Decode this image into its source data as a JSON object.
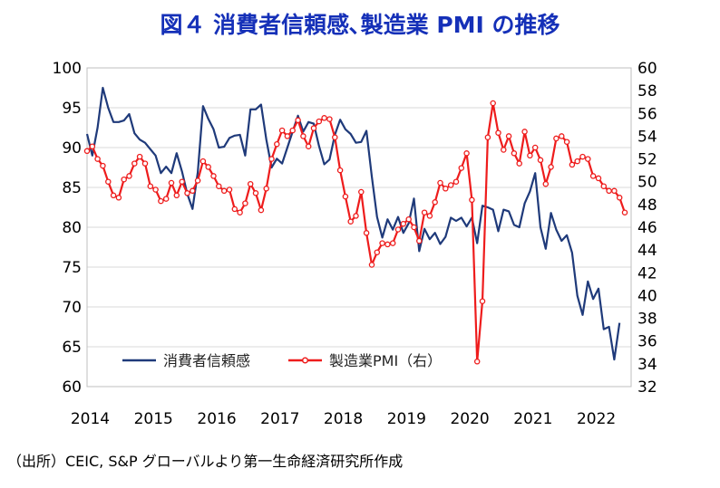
{
  "title": "図４ 消費者信頼感､製造業 PMI の推移",
  "source": "（出所）CEIC, S&P グローバルより第一生命経済研究所作成",
  "colors": {
    "consumer": "#1f3a7a",
    "pmi": "#ee1c1c",
    "grid": "#d9d9d9"
  },
  "chart_data": {
    "type": "line",
    "title": "図４ 消費者信頼感､製造業 PMI の推移",
    "x_start": 2014.0,
    "x_step_months": 1,
    "x_ticks": [
      "2014",
      "2015",
      "2016",
      "2017",
      "2018",
      "2019",
      "2020",
      "2021",
      "2022"
    ],
    "ylim_left": [
      60,
      100
    ],
    "yticks_left": [
      100,
      95,
      90,
      85,
      80,
      75,
      70,
      65,
      60
    ],
    "ylim_right": [
      32,
      60
    ],
    "yticks_right": [
      60,
      58,
      56,
      54,
      52,
      50,
      48,
      46,
      44,
      42,
      40,
      38,
      36,
      34,
      32
    ],
    "grid": "horizontal",
    "legend_position": "bottom-left",
    "series": [
      {
        "name": "消費者信頼感",
        "axis": "left",
        "marker": "none",
        "values": [
          91.7,
          89.0,
          92.5,
          97.5,
          95.0,
          93.2,
          93.2,
          93.4,
          94.2,
          91.8,
          91.0,
          90.6,
          89.8,
          89.0,
          86.8,
          87.6,
          86.8,
          89.3,
          87.0,
          84.2,
          82.3,
          86.9,
          95.2,
          93.6,
          92.3,
          90.0,
          90.1,
          91.2,
          91.5,
          91.6,
          89.0,
          94.8,
          94.8,
          95.4,
          91.0,
          87.5,
          88.6,
          88.0,
          90.0,
          92.0,
          94.0,
          92.0,
          93.2,
          93.0,
          90.2,
          87.9,
          88.5,
          91.6,
          93.5,
          92.3,
          91.7,
          90.6,
          90.7,
          92.1,
          86.4,
          81.3,
          78.7,
          81.0,
          79.7,
          81.3,
          79.3,
          80.5,
          83.6,
          77.0,
          79.8,
          78.5,
          79.3,
          77.9,
          78.8,
          81.2,
          80.8,
          81.2,
          80.1,
          81.2,
          78.0,
          82.7,
          82.5,
          82.2,
          79.5,
          82.2,
          82.0,
          80.3,
          80.0,
          83.0,
          84.5,
          86.8,
          80.0,
          77.3,
          81.8,
          79.7,
          78.3,
          79.0,
          76.8,
          71.4,
          69.0,
          73.2,
          71.0,
          72.3,
          67.2,
          67.5,
          63.4,
          68.0
        ]
      },
      {
        "name": "製造業PMI（右）",
        "axis": "right",
        "marker": "circle",
        "values": [
          52.7,
          53.1,
          52.0,
          51.4,
          50.0,
          48.8,
          48.6,
          50.2,
          50.5,
          51.6,
          52.2,
          51.6,
          49.6,
          49.3,
          48.3,
          48.5,
          49.9,
          48.8,
          50.0,
          49.0,
          49.2,
          50.1,
          51.8,
          51.3,
          50.5,
          49.6,
          49.2,
          49.3,
          47.6,
          47.3,
          48.1,
          49.8,
          49.0,
          47.5,
          49.4,
          52.0,
          53.3,
          54.5,
          54.0,
          54.5,
          55.4,
          54.0,
          53.1,
          54.7,
          55.3,
          55.6,
          55.5,
          53.9,
          51.0,
          48.7,
          46.5,
          47.0,
          49.1,
          45.5,
          42.7,
          43.8,
          44.6,
          44.5,
          44.6,
          45.8,
          46.3,
          46.7,
          46.0,
          44.8,
          47.3,
          47.0,
          48.2,
          49.9,
          49.4,
          49.7,
          50.0,
          51.2,
          52.5,
          48.4,
          34.2,
          39.5,
          53.9,
          56.9,
          54.3,
          52.8,
          54.0,
          52.5,
          51.6,
          54.4,
          52.3,
          53.0,
          51.9,
          49.8,
          51.3,
          53.8,
          54.0,
          53.5,
          51.5,
          51.8,
          52.2,
          52.0,
          50.5,
          50.3,
          49.6,
          49.2,
          49.2,
          48.6,
          47.3
        ]
      }
    ]
  }
}
